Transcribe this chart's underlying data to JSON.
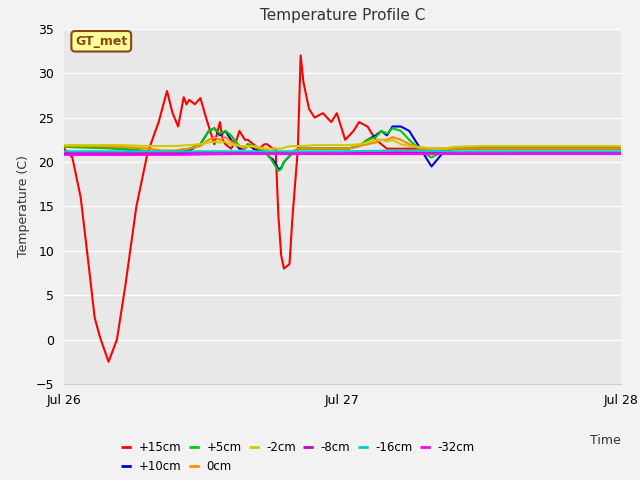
{
  "title": "Temperature Profile C",
  "ylabel": "Temperature (C)",
  "ylim": [
    -5,
    35
  ],
  "yticks": [
    -5,
    0,
    5,
    10,
    15,
    20,
    25,
    30,
    35
  ],
  "figure_bg": "#f2f2f2",
  "plot_bg": "#e8e8e8",
  "annotation_text": "GT_met",
  "series": [
    {
      "label": "+15cm",
      "color": "#ff0000",
      "linewidth": 1.5,
      "points": [
        [
          0.0,
          21.5
        ],
        [
          0.03,
          20.5
        ],
        [
          0.06,
          16.0
        ],
        [
          0.09,
          8.0
        ],
        [
          0.11,
          2.5
        ],
        [
          0.13,
          0.2
        ],
        [
          0.16,
          -2.5
        ],
        [
          0.19,
          0.0
        ],
        [
          0.22,
          6.0
        ],
        [
          0.26,
          15.0
        ],
        [
          0.3,
          21.0
        ],
        [
          0.34,
          24.5
        ],
        [
          0.37,
          28.0
        ],
        [
          0.39,
          25.5
        ],
        [
          0.41,
          24.0
        ],
        [
          0.43,
          27.3
        ],
        [
          0.44,
          26.5
        ],
        [
          0.45,
          27.0
        ],
        [
          0.47,
          26.5
        ],
        [
          0.49,
          27.2
        ],
        [
          0.51,
          25.0
        ],
        [
          0.54,
          22.0
        ],
        [
          0.56,
          24.5
        ],
        [
          0.57,
          22.5
        ],
        [
          0.58,
          22.0
        ],
        [
          0.6,
          21.5
        ],
        [
          0.62,
          22.5
        ],
        [
          0.63,
          23.5
        ],
        [
          0.65,
          22.5
        ],
        [
          0.66,
          22.5
        ],
        [
          0.68,
          22.0
        ],
        [
          0.7,
          21.5
        ],
        [
          0.72,
          22.0
        ],
        [
          0.73,
          22.0
        ],
        [
          0.75,
          21.5
        ],
        [
          0.76,
          21.5
        ],
        [
          0.77,
          14.0
        ],
        [
          0.78,
          9.5
        ],
        [
          0.79,
          8.0
        ],
        [
          0.81,
          8.5
        ],
        [
          0.82,
          13.5
        ],
        [
          0.84,
          21.5
        ],
        [
          0.85,
          32.0
        ],
        [
          0.86,
          29.0
        ],
        [
          0.88,
          26.0
        ],
        [
          0.9,
          25.0
        ],
        [
          0.93,
          25.5
        ],
        [
          0.96,
          24.5
        ],
        [
          0.98,
          25.5
        ],
        [
          1.01,
          22.5
        ],
        [
          1.04,
          23.5
        ],
        [
          1.06,
          24.5
        ],
        [
          1.09,
          24.0
        ],
        [
          1.12,
          22.5
        ],
        [
          1.16,
          21.5
        ],
        [
          1.25,
          21.5
        ],
        [
          1.35,
          21.5
        ],
        [
          1.5,
          21.5
        ],
        [
          1.7,
          21.5
        ],
        [
          2.0,
          21.5
        ]
      ]
    },
    {
      "label": "+10cm",
      "color": "#0000dd",
      "linewidth": 1.5,
      "points": [
        [
          0.0,
          21.8
        ],
        [
          0.1,
          21.7
        ],
        [
          0.2,
          21.5
        ],
        [
          0.28,
          21.2
        ],
        [
          0.35,
          21.0
        ],
        [
          0.4,
          21.0
        ],
        [
          0.42,
          21.2
        ],
        [
          0.45,
          21.3
        ],
        [
          0.49,
          22.0
        ],
        [
          0.52,
          23.5
        ],
        [
          0.54,
          23.8
        ],
        [
          0.56,
          23.0
        ],
        [
          0.58,
          23.5
        ],
        [
          0.6,
          22.5
        ],
        [
          0.63,
          21.5
        ],
        [
          0.65,
          21.5
        ],
        [
          0.66,
          22.0
        ],
        [
          0.68,
          21.5
        ],
        [
          0.7,
          21.3
        ],
        [
          0.72,
          21.2
        ],
        [
          0.74,
          20.5
        ],
        [
          0.75,
          20.3
        ],
        [
          0.76,
          19.8
        ],
        [
          0.77,
          19.2
        ],
        [
          0.78,
          19.3
        ],
        [
          0.79,
          20.0
        ],
        [
          0.82,
          21.0
        ],
        [
          0.84,
          21.5
        ],
        [
          0.86,
          21.5
        ],
        [
          0.9,
          21.5
        ],
        [
          0.94,
          21.5
        ],
        [
          0.98,
          21.5
        ],
        [
          1.02,
          21.5
        ],
        [
          1.06,
          21.8
        ],
        [
          1.09,
          22.5
        ],
        [
          1.12,
          23.0
        ],
        [
          1.14,
          23.5
        ],
        [
          1.16,
          23.0
        ],
        [
          1.18,
          24.0
        ],
        [
          1.21,
          24.0
        ],
        [
          1.24,
          23.5
        ],
        [
          1.28,
          21.5
        ],
        [
          1.32,
          19.5
        ],
        [
          1.36,
          21.0
        ],
        [
          1.4,
          21.5
        ],
        [
          1.5,
          21.5
        ],
        [
          1.7,
          21.5
        ],
        [
          2.0,
          21.5
        ]
      ]
    },
    {
      "label": "+5cm",
      "color": "#00cc00",
      "linewidth": 1.5,
      "points": [
        [
          0.0,
          21.7
        ],
        [
          0.1,
          21.6
        ],
        [
          0.2,
          21.5
        ],
        [
          0.28,
          21.3
        ],
        [
          0.35,
          21.0
        ],
        [
          0.4,
          21.2
        ],
        [
          0.42,
          21.4
        ],
        [
          0.45,
          21.5
        ],
        [
          0.49,
          22.0
        ],
        [
          0.52,
          23.5
        ],
        [
          0.54,
          23.8
        ],
        [
          0.56,
          23.2
        ],
        [
          0.58,
          23.5
        ],
        [
          0.6,
          23.0
        ],
        [
          0.63,
          21.8
        ],
        [
          0.65,
          21.5
        ],
        [
          0.66,
          22.0
        ],
        [
          0.68,
          21.8
        ],
        [
          0.7,
          21.5
        ],
        [
          0.72,
          21.3
        ],
        [
          0.74,
          20.5
        ],
        [
          0.75,
          20.0
        ],
        [
          0.76,
          19.5
        ],
        [
          0.77,
          19.0
        ],
        [
          0.78,
          19.2
        ],
        [
          0.79,
          20.0
        ],
        [
          0.82,
          21.0
        ],
        [
          0.84,
          21.5
        ],
        [
          0.86,
          21.5
        ],
        [
          0.9,
          21.5
        ],
        [
          0.94,
          21.5
        ],
        [
          0.98,
          21.5
        ],
        [
          1.02,
          21.5
        ],
        [
          1.06,
          21.8
        ],
        [
          1.09,
          22.5
        ],
        [
          1.12,
          22.8
        ],
        [
          1.14,
          23.5
        ],
        [
          1.16,
          23.2
        ],
        [
          1.18,
          23.8
        ],
        [
          1.21,
          23.5
        ],
        [
          1.24,
          22.5
        ],
        [
          1.28,
          21.3
        ],
        [
          1.32,
          20.5
        ],
        [
          1.36,
          21.2
        ],
        [
          1.4,
          21.5
        ],
        [
          1.5,
          21.5
        ],
        [
          1.7,
          21.5
        ],
        [
          2.0,
          21.5
        ]
      ]
    },
    {
      "label": "0cm",
      "color": "#ff8800",
      "linewidth": 1.5,
      "points": [
        [
          0.0,
          21.8
        ],
        [
          0.1,
          21.8
        ],
        [
          0.2,
          21.7
        ],
        [
          0.3,
          21.5
        ],
        [
          0.35,
          21.3
        ],
        [
          0.4,
          21.3
        ],
        [
          0.45,
          21.5
        ],
        [
          0.49,
          21.8
        ],
        [
          0.52,
          22.5
        ],
        [
          0.54,
          22.8
        ],
        [
          0.56,
          22.5
        ],
        [
          0.58,
          22.8
        ],
        [
          0.6,
          22.3
        ],
        [
          0.63,
          21.8
        ],
        [
          0.65,
          21.5
        ],
        [
          0.66,
          21.8
        ],
        [
          0.68,
          21.7
        ],
        [
          0.7,
          21.5
        ],
        [
          0.72,
          21.5
        ],
        [
          0.74,
          21.0
        ],
        [
          0.76,
          21.0
        ],
        [
          0.78,
          21.0
        ],
        [
          0.8,
          21.0
        ],
        [
          0.82,
          21.2
        ],
        [
          0.84,
          21.5
        ],
        [
          0.86,
          21.5
        ],
        [
          0.9,
          21.5
        ],
        [
          0.94,
          21.5
        ],
        [
          0.98,
          21.5
        ],
        [
          1.02,
          21.5
        ],
        [
          1.06,
          21.8
        ],
        [
          1.09,
          22.0
        ],
        [
          1.12,
          22.2
        ],
        [
          1.14,
          22.5
        ],
        [
          1.16,
          22.5
        ],
        [
          1.18,
          22.8
        ],
        [
          1.21,
          22.5
        ],
        [
          1.24,
          22.0
        ],
        [
          1.28,
          21.5
        ],
        [
          1.32,
          21.3
        ],
        [
          1.36,
          21.3
        ],
        [
          1.4,
          21.5
        ],
        [
          1.5,
          21.5
        ],
        [
          1.7,
          21.5
        ],
        [
          2.0,
          21.5
        ]
      ]
    },
    {
      "label": "-2cm",
      "color": "#cccc00",
      "linewidth": 1.5,
      "points": [
        [
          0.0,
          21.9
        ],
        [
          0.1,
          21.9
        ],
        [
          0.2,
          21.9
        ],
        [
          0.3,
          21.8
        ],
        [
          0.4,
          21.8
        ],
        [
          0.45,
          21.9
        ],
        [
          0.49,
          22.0
        ],
        [
          0.52,
          22.2
        ],
        [
          0.54,
          22.3
        ],
        [
          0.56,
          22.2
        ],
        [
          0.58,
          22.3
        ],
        [
          0.6,
          22.0
        ],
        [
          0.63,
          21.8
        ],
        [
          0.65,
          21.8
        ],
        [
          0.68,
          21.8
        ],
        [
          0.7,
          21.7
        ],
        [
          0.72,
          21.5
        ],
        [
          0.74,
          21.5
        ],
        [
          0.76,
          21.5
        ],
        [
          0.78,
          21.5
        ],
        [
          0.8,
          21.7
        ],
        [
          0.82,
          21.8
        ],
        [
          0.86,
          21.8
        ],
        [
          0.9,
          21.9
        ],
        [
          0.94,
          21.9
        ],
        [
          0.98,
          21.9
        ],
        [
          1.02,
          21.9
        ],
        [
          1.06,
          22.0
        ],
        [
          1.09,
          22.2
        ],
        [
          1.12,
          22.5
        ],
        [
          1.14,
          22.5
        ],
        [
          1.16,
          22.3
        ],
        [
          1.18,
          22.5
        ],
        [
          1.21,
          22.0
        ],
        [
          1.24,
          21.8
        ],
        [
          1.28,
          21.7
        ],
        [
          1.32,
          21.5
        ],
        [
          1.36,
          21.5
        ],
        [
          1.4,
          21.7
        ],
        [
          1.5,
          21.8
        ],
        [
          1.7,
          21.8
        ],
        [
          2.0,
          21.8
        ]
      ]
    },
    {
      "label": "-8cm",
      "color": "#cc00cc",
      "linewidth": 1.5,
      "points": [
        [
          0.0,
          21.0
        ],
        [
          0.2,
          21.0
        ],
        [
          0.4,
          21.0
        ],
        [
          0.6,
          21.1
        ],
        [
          0.8,
          21.0
        ],
        [
          1.0,
          21.0
        ],
        [
          1.2,
          21.1
        ],
        [
          1.4,
          21.0
        ],
        [
          1.6,
          21.0
        ],
        [
          1.8,
          21.1
        ],
        [
          2.0,
          21.1
        ]
      ]
    },
    {
      "label": "-16cm",
      "color": "#00cccc",
      "linewidth": 1.5,
      "points": [
        [
          0.0,
          21.2
        ],
        [
          0.2,
          21.2
        ],
        [
          0.4,
          21.2
        ],
        [
          0.6,
          21.2
        ],
        [
          0.8,
          21.2
        ],
        [
          1.0,
          21.2
        ],
        [
          1.2,
          21.3
        ],
        [
          1.4,
          21.2
        ],
        [
          1.6,
          21.2
        ],
        [
          1.8,
          21.2
        ],
        [
          2.0,
          21.2
        ]
      ]
    },
    {
      "label": "-32cm",
      "color": "#ff00ff",
      "linewidth": 1.5,
      "points": [
        [
          0.0,
          20.8
        ],
        [
          0.2,
          20.8
        ],
        [
          0.4,
          20.8
        ],
        [
          0.6,
          20.9
        ],
        [
          0.8,
          20.9
        ],
        [
          1.0,
          20.9
        ],
        [
          1.2,
          20.9
        ],
        [
          1.4,
          20.9
        ],
        [
          1.6,
          20.9
        ],
        [
          1.8,
          20.9
        ],
        [
          2.0,
          20.9
        ]
      ]
    }
  ],
  "xtick_positions": [
    0,
    1,
    2
  ],
  "xtick_labels": [
    "Jul 26",
    "Jul 27",
    "Jul 28"
  ],
  "title_fontsize": 11,
  "axis_label_fontsize": 9,
  "tick_fontsize": 9,
  "legend_order": [
    "+15cm",
    "+10cm",
    "+5cm",
    "0cm",
    "-2cm",
    "-8cm",
    "-16cm",
    "-32cm"
  ]
}
